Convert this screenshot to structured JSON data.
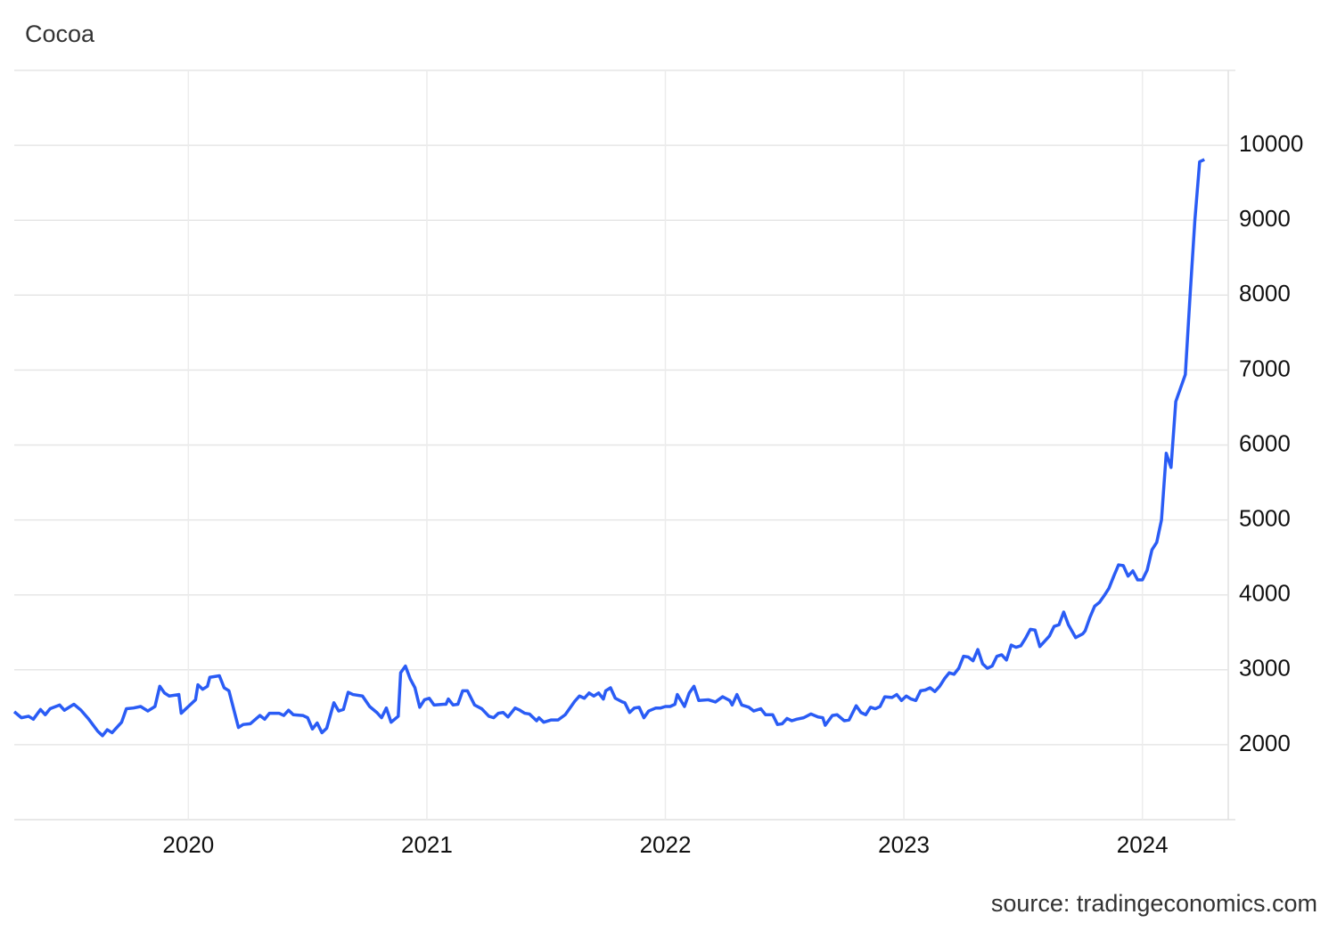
{
  "chart_data": {
    "type": "line",
    "title": "Cocoa",
    "source": "source: tradingeconomics.com",
    "color": "#2a5cf5",
    "grid": true,
    "xlim": [
      2019.27,
      2024.36
    ],
    "xticks": [
      2020,
      2021,
      2022,
      2023,
      2024
    ],
    "ylim": [
      1000,
      11000
    ],
    "yticks": [
      2000,
      3000,
      4000,
      5000,
      6000,
      7000,
      8000,
      9000,
      10000
    ],
    "x": [
      2019.27,
      2019.3,
      2019.33,
      2019.35,
      2019.38,
      2019.4,
      2019.42,
      2019.46,
      2019.48,
      2019.52,
      2019.55,
      2019.58,
      2019.62,
      2019.64,
      2019.66,
      2019.68,
      2019.72,
      2019.74,
      2019.77,
      2019.8,
      2019.83,
      2019.86,
      2019.88,
      2019.9,
      2019.92,
      2019.96,
      2019.97,
      2020.0,
      2020.03,
      2020.04,
      2020.06,
      2020.08,
      2020.09,
      2020.13,
      2020.15,
      2020.17,
      2020.21,
      2020.23,
      2020.26,
      2020.3,
      2020.32,
      2020.34,
      2020.38,
      2020.4,
      2020.42,
      2020.44,
      2020.48,
      2020.5,
      2020.52,
      2020.54,
      2020.56,
      2020.58,
      2020.61,
      2020.63,
      2020.65,
      2020.67,
      2020.69,
      2020.73,
      2020.76,
      2020.79,
      2020.81,
      2020.83,
      2020.85,
      2020.88,
      2020.89,
      2020.91,
      2020.93,
      2020.95,
      2020.97,
      2020.99,
      2021.01,
      2021.03,
      2021.07,
      2021.08,
      2021.09,
      2021.11,
      2021.13,
      2021.15,
      2021.17,
      2021.2,
      2021.23,
      2021.26,
      2021.28,
      2021.3,
      2021.32,
      2021.34,
      2021.37,
      2021.39,
      2021.41,
      2021.43,
      2021.46,
      2021.47,
      2021.49,
      2021.52,
      2021.55,
      2021.58,
      2021.62,
      2021.64,
      2021.66,
      2021.68,
      2021.7,
      2021.72,
      2021.74,
      2021.75,
      2021.77,
      2021.79,
      2021.82,
      2021.83,
      2021.85,
      2021.87,
      2021.89,
      2021.91,
      2021.93,
      2021.96,
      2021.98,
      2022.0,
      2022.02,
      2022.04,
      2022.05,
      2022.08,
      2022.1,
      2022.12,
      2022.14,
      2022.18,
      2022.21,
      2022.24,
      2022.27,
      2022.28,
      2022.3,
      2022.32,
      2022.35,
      2022.37,
      2022.4,
      2022.42,
      2022.45,
      2022.47,
      2022.49,
      2022.51,
      2022.53,
      2022.55,
      2022.58,
      2022.61,
      2022.64,
      2022.66,
      2022.67,
      2022.7,
      2022.72,
      2022.75,
      2022.77,
      2022.8,
      2022.82,
      2022.84,
      2022.86,
      2022.88,
      2022.9,
      2022.92,
      2022.95,
      2022.97,
      2022.99,
      2023.01,
      2023.03,
      2023.05,
      2023.07,
      2023.09,
      2023.11,
      2023.13,
      2023.15,
      2023.17,
      2023.19,
      2023.21,
      2023.23,
      2023.25,
      2023.27,
      2023.29,
      2023.31,
      2023.33,
      2023.35,
      2023.37,
      2023.39,
      2023.41,
      2023.43,
      2023.45,
      2023.47,
      2023.49,
      2023.51,
      2023.53,
      2023.55,
      2023.57,
      2023.59,
      2023.61,
      2023.63,
      2023.65,
      2023.67,
      2023.69,
      2023.72,
      2023.75,
      2023.76,
      2023.78,
      2023.8,
      2023.82,
      2023.84,
      2023.86,
      2023.88,
      2023.9,
      2023.92,
      2023.94,
      2023.96,
      2023.98,
      2024.0,
      2024.02,
      2024.04,
      2024.06,
      2024.08,
      2024.1,
      2024.12,
      2024.14,
      2024.16,
      2024.18,
      2024.2,
      2024.22,
      2024.24,
      2024.26
    ],
    "values": [
      2440,
      2360,
      2380,
      2340,
      2470,
      2400,
      2480,
      2530,
      2460,
      2540,
      2460,
      2350,
      2180,
      2120,
      2200,
      2160,
      2300,
      2480,
      2490,
      2510,
      2450,
      2510,
      2780,
      2690,
      2650,
      2670,
      2420,
      2510,
      2600,
      2800,
      2740,
      2780,
      2900,
      2920,
      2760,
      2720,
      2230,
      2270,
      2280,
      2390,
      2340,
      2420,
      2420,
      2390,
      2460,
      2400,
      2390,
      2360,
      2210,
      2290,
      2160,
      2220,
      2560,
      2450,
      2470,
      2700,
      2670,
      2650,
      2510,
      2430,
      2360,
      2490,
      2300,
      2380,
      2960,
      3050,
      2880,
      2760,
      2500,
      2600,
      2620,
      2530,
      2540,
      2540,
      2610,
      2530,
      2540,
      2720,
      2720,
      2530,
      2480,
      2380,
      2360,
      2420,
      2430,
      2370,
      2490,
      2460,
      2420,
      2410,
      2320,
      2360,
      2300,
      2330,
      2330,
      2400,
      2580,
      2650,
      2620,
      2690,
      2650,
      2690,
      2610,
      2720,
      2760,
      2620,
      2570,
      2560,
      2430,
      2490,
      2500,
      2360,
      2450,
      2490,
      2490,
      2510,
      2510,
      2540,
      2670,
      2510,
      2690,
      2780,
      2590,
      2600,
      2570,
      2640,
      2590,
      2530,
      2670,
      2530,
      2500,
      2450,
      2480,
      2400,
      2400,
      2270,
      2280,
      2350,
      2320,
      2340,
      2360,
      2410,
      2370,
      2360,
      2260,
      2390,
      2400,
      2320,
      2330,
      2520,
      2430,
      2400,
      2500,
      2480,
      2510,
      2640,
      2630,
      2670,
      2590,
      2650,
      2610,
      2590,
      2720,
      2730,
      2760,
      2710,
      2780,
      2880,
      2960,
      2940,
      3020,
      3180,
      3170,
      3120,
      3270,
      3080,
      3020,
      3050,
      3180,
      3200,
      3130,
      3330,
      3300,
      3320,
      3420,
      3540,
      3530,
      3310,
      3380,
      3450,
      3580,
      3600,
      3770,
      3600,
      3430,
      3480,
      3520,
      3700,
      3850,
      3900,
      3990,
      4090,
      4250,
      4400,
      4390,
      4250,
      4320,
      4200,
      4200,
      4330,
      4600,
      4700,
      5000,
      5890,
      5700,
      6580,
      6760,
      6940,
      8000,
      9000,
      9780,
      9810
    ]
  }
}
